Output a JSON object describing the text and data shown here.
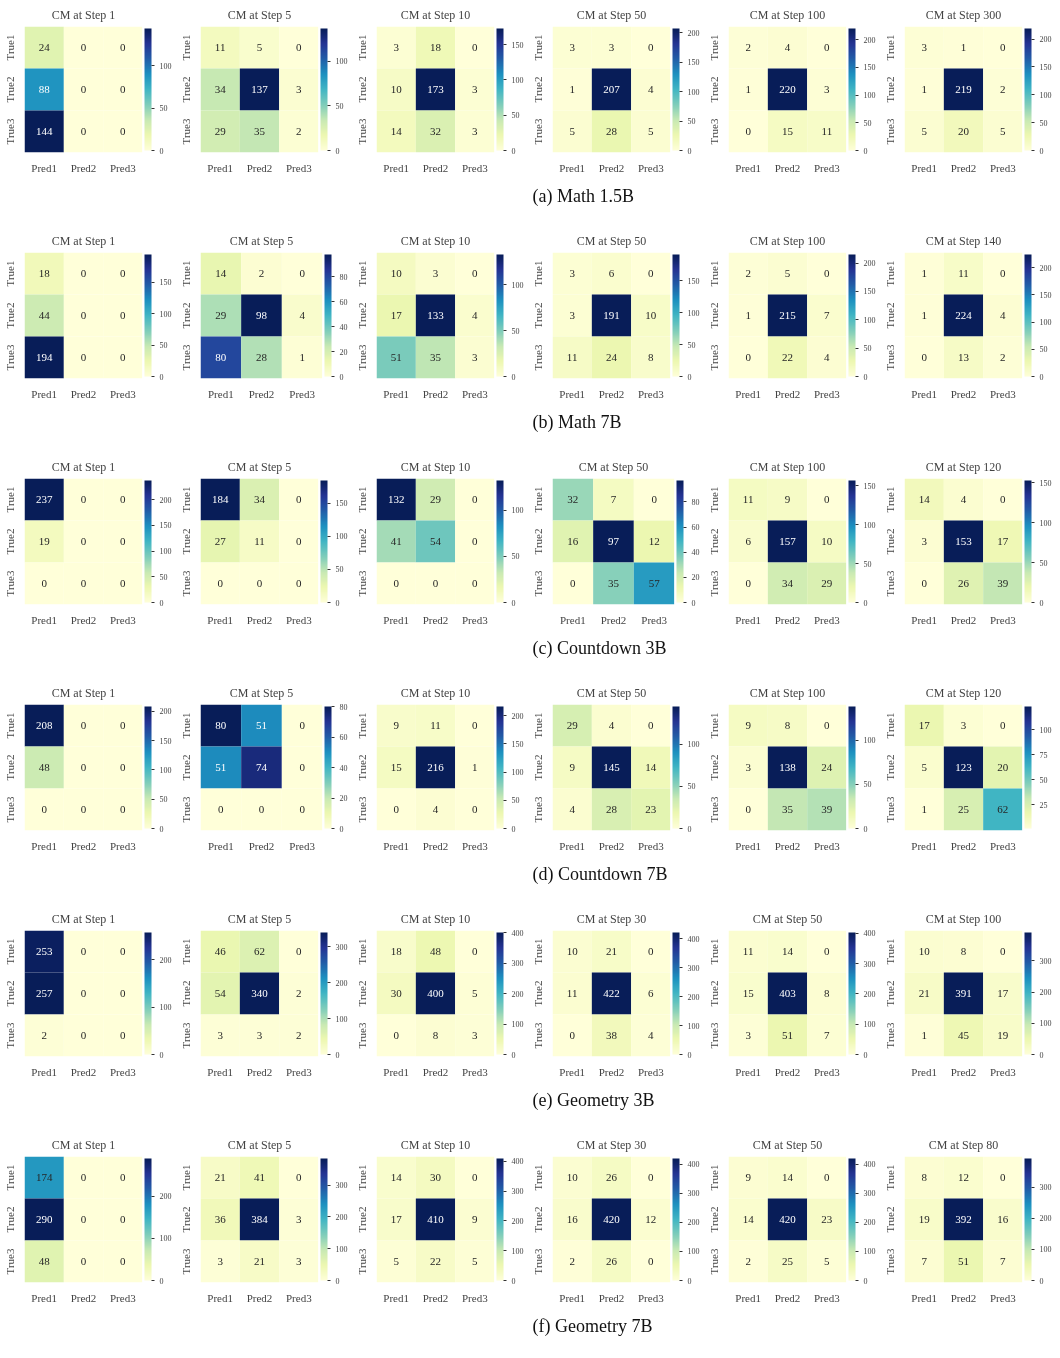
{
  "chart_data": [
    {
      "type": "heatmap",
      "title": "CM at Step 1",
      "categories": [
        "Pred1",
        "Pred2",
        "Pred3"
      ],
      "y_categories": [
        "True1",
        "True2",
        "True3"
      ],
      "cells": [
        [
          24,
          0,
          0
        ],
        [
          88,
          0,
          0
        ],
        [
          144,
          0,
          0
        ]
      ],
      "clim": [
        0,
        144
      ],
      "cticks": [
        0,
        50,
        100
      ],
      "data_labels": true
    },
    {
      "type": "heatmap",
      "title": "CM at Step 5",
      "categories": [
        "Pred1",
        "Pred2",
        "Pred3"
      ],
      "y_categories": [
        "True1",
        "True2",
        "True3"
      ],
      "cells": [
        [
          11,
          5,
          0
        ],
        [
          34,
          137,
          3
        ],
        [
          29,
          35,
          2
        ]
      ],
      "clim": [
        0,
        137
      ],
      "cticks": [
        0,
        50,
        100
      ],
      "data_labels": true
    },
    {
      "type": "heatmap",
      "title": "CM at Step 10",
      "categories": [
        "Pred1",
        "Pred2",
        "Pred3"
      ],
      "y_categories": [
        "True1",
        "True2",
        "True3"
      ],
      "cells": [
        [
          3,
          18,
          0
        ],
        [
          10,
          173,
          3
        ],
        [
          14,
          32,
          3
        ]
      ],
      "clim": [
        0,
        173
      ],
      "cticks": [
        0,
        50,
        100,
        150
      ],
      "data_labels": true
    },
    {
      "type": "heatmap",
      "title": "CM at Step 50",
      "categories": [
        "Pred1",
        "Pred2",
        "Pred3"
      ],
      "y_categories": [
        "True1",
        "True2",
        "True3"
      ],
      "cells": [
        [
          3,
          3,
          0
        ],
        [
          1,
          207,
          4
        ],
        [
          5,
          28,
          5
        ]
      ],
      "clim": [
        0,
        207
      ],
      "cticks": [
        0,
        50,
        100,
        150,
        200
      ],
      "data_labels": true,
      "annotations": [
        "(a)  Math 1.5B"
      ]
    },
    {
      "type": "heatmap",
      "title": "CM at Step 100",
      "categories": [
        "Pred1",
        "Pred2",
        "Pred3"
      ],
      "y_categories": [
        "True1",
        "True2",
        "True3"
      ],
      "cells": [
        [
          2,
          4,
          0
        ],
        [
          1,
          220,
          3
        ],
        [
          0,
          15,
          11
        ]
      ],
      "clim": [
        0,
        220
      ],
      "cticks": [
        0,
        50,
        100,
        150,
        200
      ],
      "data_labels": true
    },
    {
      "type": "heatmap",
      "title": "CM at Step 300",
      "categories": [
        "Pred1",
        "Pred2",
        "Pred3"
      ],
      "y_categories": [
        "True1",
        "True2",
        "True3"
      ],
      "cells": [
        [
          3,
          1,
          0
        ],
        [
          1,
          219,
          2
        ],
        [
          5,
          20,
          5
        ]
      ],
      "clim": [
        0,
        219
      ],
      "cticks": [
        0,
        50,
        100,
        150,
        200
      ],
      "data_labels": true
    },
    {
      "type": "heatmap",
      "title": "CM at Step 1",
      "categories": [
        "Pred1",
        "Pred2",
        "Pred3"
      ],
      "y_categories": [
        "True1",
        "True2",
        "True3"
      ],
      "cells": [
        [
          18,
          0,
          0
        ],
        [
          44,
          0,
          0
        ],
        [
          194,
          0,
          0
        ]
      ],
      "clim": [
        0,
        194
      ],
      "cticks": [
        0,
        50,
        100,
        150
      ],
      "data_labels": true
    },
    {
      "type": "heatmap",
      "title": "CM at Step 5",
      "categories": [
        "Pred1",
        "Pred2",
        "Pred3"
      ],
      "y_categories": [
        "True1",
        "True2",
        "True3"
      ],
      "cells": [
        [
          14,
          2,
          0
        ],
        [
          29,
          98,
          4
        ],
        [
          80,
          28,
          1
        ]
      ],
      "clim": [
        0,
        98
      ],
      "cticks": [
        0,
        20,
        40,
        60,
        80
      ],
      "data_labels": true
    },
    {
      "type": "heatmap",
      "title": "CM at Step 10",
      "categories": [
        "Pred1",
        "Pred2",
        "Pred3"
      ],
      "y_categories": [
        "True1",
        "True2",
        "True3"
      ],
      "cells": [
        [
          10,
          3,
          0
        ],
        [
          17,
          133,
          4
        ],
        [
          51,
          35,
          3
        ]
      ],
      "clim": [
        0,
        133
      ],
      "cticks": [
        0,
        50,
        100
      ],
      "data_labels": true
    },
    {
      "type": "heatmap",
      "title": "CM at Step 50",
      "categories": [
        "Pred1",
        "Pred2",
        "Pred3"
      ],
      "y_categories": [
        "True1",
        "True2",
        "True3"
      ],
      "cells": [
        [
          3,
          6,
          0
        ],
        [
          3,
          191,
          10
        ],
        [
          11,
          24,
          8
        ]
      ],
      "clim": [
        0,
        191
      ],
      "cticks": [
        0,
        50,
        100,
        150
      ],
      "data_labels": true,
      "annotations": [
        "(b)  Math 7B"
      ]
    },
    {
      "type": "heatmap",
      "title": "CM at Step 100",
      "categories": [
        "Pred1",
        "Pred2",
        "Pred3"
      ],
      "y_categories": [
        "True1",
        "True2",
        "True3"
      ],
      "cells": [
        [
          2,
          5,
          0
        ],
        [
          1,
          215,
          7
        ],
        [
          0,
          22,
          4
        ]
      ],
      "clim": [
        0,
        215
      ],
      "cticks": [
        0,
        50,
        100,
        150,
        200
      ],
      "data_labels": true
    },
    {
      "type": "heatmap",
      "title": "CM at Step 140",
      "categories": [
        "Pred1",
        "Pred2",
        "Pred3"
      ],
      "y_categories": [
        "True1",
        "True2",
        "True3"
      ],
      "cells": [
        [
          1,
          11,
          0
        ],
        [
          1,
          224,
          4
        ],
        [
          0,
          13,
          2
        ]
      ],
      "clim": [
        0,
        224
      ],
      "cticks": [
        0,
        50,
        100,
        150,
        200
      ],
      "data_labels": true
    },
    {
      "type": "heatmap",
      "title": "CM at Step 1",
      "categories": [
        "Pred1",
        "Pred2",
        "Pred3"
      ],
      "y_categories": [
        "True1",
        "True2",
        "True3"
      ],
      "cells": [
        [
          237,
          0,
          0
        ],
        [
          19,
          0,
          0
        ],
        [
          0,
          0,
          0
        ]
      ],
      "clim": [
        0,
        237
      ],
      "cticks": [
        0,
        50,
        100,
        150,
        200
      ],
      "data_labels": true
    },
    {
      "type": "heatmap",
      "title": "CM at Step 5",
      "categories": [
        "Pred1",
        "Pred2",
        "Pred3"
      ],
      "y_categories": [
        "True1",
        "True2",
        "True3"
      ],
      "cells": [
        [
          184,
          34,
          0
        ],
        [
          27,
          11,
          0
        ],
        [
          0,
          0,
          0
        ]
      ],
      "clim": [
        0,
        184
      ],
      "cticks": [
        0,
        50,
        100,
        150
      ],
      "data_labels": true
    },
    {
      "type": "heatmap",
      "title": "CM at Step 10",
      "categories": [
        "Pred1",
        "Pred2",
        "Pred3"
      ],
      "y_categories": [
        "True1",
        "True2",
        "True3"
      ],
      "cells": [
        [
          132,
          29,
          0
        ],
        [
          41,
          54,
          0
        ],
        [
          0,
          0,
          0
        ]
      ],
      "clim": [
        0,
        132
      ],
      "cticks": [
        0,
        50,
        100
      ],
      "data_labels": true
    },
    {
      "type": "heatmap",
      "title": "CM at Step 50",
      "categories": [
        "Pred1",
        "Pred2",
        "Pred3"
      ],
      "y_categories": [
        "True1",
        "True2",
        "True3"
      ],
      "cells": [
        [
          32,
          7,
          0
        ],
        [
          16,
          97,
          12
        ],
        [
          0,
          35,
          57
        ]
      ],
      "clim": [
        0,
        97
      ],
      "cticks": [
        0,
        20,
        40,
        60,
        80
      ],
      "data_labels": true,
      "annotations": [
        "(c)  Countdown 3B"
      ]
    },
    {
      "type": "heatmap",
      "title": "CM at Step 100",
      "categories": [
        "Pred1",
        "Pred2",
        "Pred3"
      ],
      "y_categories": [
        "True1",
        "True2",
        "True3"
      ],
      "cells": [
        [
          11,
          9,
          0
        ],
        [
          6,
          157,
          10
        ],
        [
          0,
          34,
          29
        ]
      ],
      "clim": [
        0,
        157
      ],
      "cticks": [
        0,
        50,
        100,
        150
      ],
      "data_labels": true
    },
    {
      "type": "heatmap",
      "title": "CM at Step 120",
      "categories": [
        "Pred1",
        "Pred2",
        "Pred3"
      ],
      "y_categories": [
        "True1",
        "True2",
        "True3"
      ],
      "cells": [
        [
          14,
          4,
          0
        ],
        [
          3,
          153,
          17
        ],
        [
          0,
          26,
          39
        ]
      ],
      "clim": [
        0,
        153
      ],
      "cticks": [
        0,
        50,
        100,
        150
      ],
      "data_labels": true
    },
    {
      "type": "heatmap",
      "title": "CM at Step 1",
      "categories": [
        "Pred1",
        "Pred2",
        "Pred3"
      ],
      "y_categories": [
        "True1",
        "True2",
        "True3"
      ],
      "cells": [
        [
          208,
          0,
          0
        ],
        [
          48,
          0,
          0
        ],
        [
          0,
          0,
          0
        ]
      ],
      "clim": [
        0,
        208
      ],
      "cticks": [
        0,
        50,
        100,
        150,
        200
      ],
      "data_labels": true
    },
    {
      "type": "heatmap",
      "title": "CM at Step 5",
      "categories": [
        "Pred1",
        "Pred2",
        "Pred3"
      ],
      "y_categories": [
        "True1",
        "True2",
        "True3"
      ],
      "cells": [
        [
          80,
          51,
          0
        ],
        [
          51,
          74,
          0
        ],
        [
          0,
          0,
          0
        ]
      ],
      "clim": [
        0,
        80
      ],
      "cticks": [
        0,
        20,
        40,
        60,
        80
      ],
      "data_labels": true
    },
    {
      "type": "heatmap",
      "title": "CM at Step 10",
      "categories": [
        "Pred1",
        "Pred2",
        "Pred3"
      ],
      "y_categories": [
        "True1",
        "True2",
        "True3"
      ],
      "cells": [
        [
          9,
          11,
          0
        ],
        [
          15,
          216,
          1
        ],
        [
          0,
          4,
          0
        ]
      ],
      "clim": [
        0,
        216
      ],
      "cticks": [
        0,
        50,
        100,
        150,
        200
      ],
      "data_labels": true
    },
    {
      "type": "heatmap",
      "title": "CM at Step 50",
      "categories": [
        "Pred1",
        "Pred2",
        "Pred3"
      ],
      "y_categories": [
        "True1",
        "True2",
        "True3"
      ],
      "cells": [
        [
          29,
          4,
          0
        ],
        [
          9,
          145,
          14
        ],
        [
          4,
          28,
          23
        ]
      ],
      "clim": [
        0,
        145
      ],
      "cticks": [
        0,
        50,
        100
      ],
      "data_labels": true,
      "annotations": [
        "(d)  Countdown 7B"
      ]
    },
    {
      "type": "heatmap",
      "title": "CM at Step 100",
      "categories": [
        "Pred1",
        "Pred2",
        "Pred3"
      ],
      "y_categories": [
        "True1",
        "True2",
        "True3"
      ],
      "cells": [
        [
          9,
          8,
          0
        ],
        [
          3,
          138,
          24
        ],
        [
          0,
          35,
          39
        ]
      ],
      "clim": [
        0,
        138
      ],
      "cticks": [
        0,
        50,
        100
      ],
      "data_labels": true
    },
    {
      "type": "heatmap",
      "title": "CM at Step 120",
      "categories": [
        "Pred1",
        "Pred2",
        "Pred3"
      ],
      "y_categories": [
        "True1",
        "True2",
        "True3"
      ],
      "cells": [
        [
          17,
          3,
          0
        ],
        [
          5,
          123,
          20
        ],
        [
          1,
          25,
          62
        ]
      ],
      "clim": [
        1,
        123
      ],
      "cticks": [
        25,
        50,
        75,
        100
      ],
      "data_labels": true
    },
    {
      "type": "heatmap",
      "title": "CM at Step 1",
      "categories": [
        "Pred1",
        "Pred2",
        "Pred3"
      ],
      "y_categories": [
        "True1",
        "True2",
        "True3"
      ],
      "cells": [
        [
          253,
          0,
          0
        ],
        [
          257,
          0,
          0
        ],
        [
          2,
          0,
          0
        ]
      ],
      "clim": [
        0,
        257
      ],
      "cticks": [
        0,
        100,
        200
      ],
      "data_labels": true
    },
    {
      "type": "heatmap",
      "title": "CM at Step 5",
      "categories": [
        "Pred1",
        "Pred2",
        "Pred3"
      ],
      "y_categories": [
        "True1",
        "True2",
        "True3"
      ],
      "cells": [
        [
          46,
          62,
          0
        ],
        [
          54,
          340,
          2
        ],
        [
          3,
          3,
          2
        ]
      ],
      "clim": [
        0,
        340
      ],
      "cticks": [
        0,
        100,
        200,
        300
      ],
      "data_labels": true
    },
    {
      "type": "heatmap",
      "title": "CM at Step 10",
      "categories": [
        "Pred1",
        "Pred2",
        "Pred3"
      ],
      "y_categories": [
        "True1",
        "True2",
        "True3"
      ],
      "cells": [
        [
          18,
          48,
          0
        ],
        [
          30,
          400,
          5
        ],
        [
          0,
          8,
          3
        ]
      ],
      "clim": [
        0,
        400
      ],
      "cticks": [
        0,
        100,
        200,
        300,
        400
      ],
      "data_labels": true
    },
    {
      "type": "heatmap",
      "title": "CM at Step 30",
      "categories": [
        "Pred1",
        "Pred2",
        "Pred3"
      ],
      "y_categories": [
        "True1",
        "True2",
        "True3"
      ],
      "cells": [
        [
          10,
          21,
          0
        ],
        [
          11,
          422,
          6
        ],
        [
          0,
          38,
          4
        ]
      ],
      "clim": [
        0,
        422
      ],
      "cticks": [
        0,
        100,
        200,
        300,
        400
      ],
      "data_labels": true,
      "annotations": [
        "(e)  Geometry 3B"
      ]
    },
    {
      "type": "heatmap",
      "title": "CM at Step 50",
      "categories": [
        "Pred1",
        "Pred2",
        "Pred3"
      ],
      "y_categories": [
        "True1",
        "True2",
        "True3"
      ],
      "cells": [
        [
          11,
          14,
          0
        ],
        [
          15,
          403,
          8
        ],
        [
          3,
          51,
          7
        ]
      ],
      "clim": [
        0,
        403
      ],
      "cticks": [
        0,
        100,
        200,
        300,
        400
      ],
      "data_labels": true
    },
    {
      "type": "heatmap",
      "title": "CM at Step 100",
      "categories": [
        "Pred1",
        "Pred2",
        "Pred3"
      ],
      "y_categories": [
        "True1",
        "True2",
        "True3"
      ],
      "cells": [
        [
          10,
          8,
          0
        ],
        [
          21,
          391,
          17
        ],
        [
          1,
          45,
          19
        ]
      ],
      "clim": [
        0,
        391
      ],
      "cticks": [
        0,
        100,
        200,
        300
      ],
      "data_labels": true
    },
    {
      "type": "heatmap",
      "title": "CM at Step 1",
      "categories": [
        "Pred1",
        "Pred2",
        "Pred3"
      ],
      "y_categories": [
        "True1",
        "True2",
        "True3"
      ],
      "cells": [
        [
          174,
          0,
          0
        ],
        [
          290,
          0,
          0
        ],
        [
          48,
          0,
          0
        ]
      ],
      "clim": [
        0,
        290
      ],
      "cticks": [
        0,
        100,
        200
      ],
      "data_labels": true
    },
    {
      "type": "heatmap",
      "title": "CM at Step 5",
      "categories": [
        "Pred1",
        "Pred2",
        "Pred3"
      ],
      "y_categories": [
        "True1",
        "True2",
        "True3"
      ],
      "cells": [
        [
          21,
          41,
          0
        ],
        [
          36,
          384,
          3
        ],
        [
          3,
          21,
          3
        ]
      ],
      "clim": [
        0,
        384
      ],
      "cticks": [
        0,
        100,
        200,
        300
      ],
      "data_labels": true
    },
    {
      "type": "heatmap",
      "title": "CM at Step 10",
      "categories": [
        "Pred1",
        "Pred2",
        "Pred3"
      ],
      "y_categories": [
        "True1",
        "True2",
        "True3"
      ],
      "cells": [
        [
          14,
          30,
          0
        ],
        [
          17,
          410,
          9
        ],
        [
          5,
          22,
          5
        ]
      ],
      "clim": [
        0,
        410
      ],
      "cticks": [
        0,
        100,
        200,
        300,
        400
      ],
      "data_labels": true
    },
    {
      "type": "heatmap",
      "title": "CM at Step 30",
      "categories": [
        "Pred1",
        "Pred2",
        "Pred3"
      ],
      "y_categories": [
        "True1",
        "True2",
        "True3"
      ],
      "cells": [
        [
          10,
          26,
          0
        ],
        [
          16,
          420,
          12
        ],
        [
          2,
          26,
          0
        ]
      ],
      "clim": [
        0,
        420
      ],
      "cticks": [
        0,
        100,
        200,
        300,
        400
      ],
      "data_labels": true,
      "annotations": [
        "(f)  Geometry 7B"
      ]
    },
    {
      "type": "heatmap",
      "title": "CM at Step 50",
      "categories": [
        "Pred1",
        "Pred2",
        "Pred3"
      ],
      "y_categories": [
        "True1",
        "True2",
        "True3"
      ],
      "cells": [
        [
          9,
          14,
          0
        ],
        [
          14,
          420,
          23
        ],
        [
          2,
          25,
          5
        ]
      ],
      "clim": [
        0,
        420
      ],
      "cticks": [
        0,
        100,
        200,
        300,
        400
      ],
      "data_labels": true
    },
    {
      "type": "heatmap",
      "title": "CM at Step 80",
      "categories": [
        "Pred1",
        "Pred2",
        "Pred3"
      ],
      "y_categories": [
        "True1",
        "True2",
        "True3"
      ],
      "cells": [
        [
          8,
          12,
          0
        ],
        [
          19,
          392,
          16
        ],
        [
          7,
          51,
          7
        ]
      ],
      "clim": [
        0,
        392
      ],
      "cticks": [
        0,
        100,
        200,
        300
      ],
      "data_labels": true
    }
  ]
}
